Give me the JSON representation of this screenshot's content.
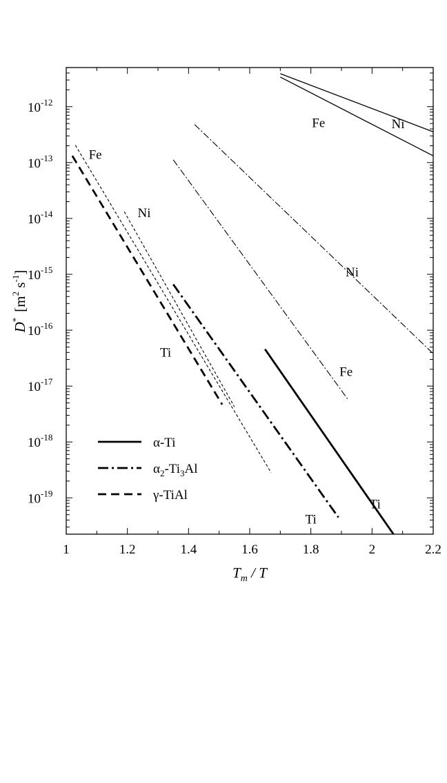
{
  "chart_data": {
    "type": "line",
    "xlabel_main": "T",
    "xlabel_sub": "m",
    "xlabel_rest": " / T",
    "ylabel_main": "D",
    "ylabel_sup": "*",
    "ylabel_unit_open": "[m",
    "ylabel_unit_sup1": "2",
    "ylabel_unit_mid": " s",
    "ylabel_unit_sup2": "-1",
    "ylabel_unit_close": "]",
    "xlim": [
      1.0,
      2.2
    ],
    "ylim_log10": [
      -19.65,
      -11.3
    ],
    "y_scale": "log",
    "grid": false,
    "x_ticks": [
      {
        "v": 1.0,
        "label": "1"
      },
      {
        "v": 1.2,
        "label": "1.2"
      },
      {
        "v": 1.4,
        "label": "1.4"
      },
      {
        "v": 1.6,
        "label": "1.6"
      },
      {
        "v": 1.8,
        "label": "1.8"
      },
      {
        "v": 2.0,
        "label": "2"
      },
      {
        "v": 2.2,
        "label": "2.2"
      }
    ],
    "y_ticks": [
      {
        "exp": -12,
        "base": "10",
        "sup": "-12"
      },
      {
        "exp": -13,
        "base": "10",
        "sup": "-13"
      },
      {
        "exp": -14,
        "base": "10",
        "sup": "-14"
      },
      {
        "exp": -15,
        "base": "10",
        "sup": "-15"
      },
      {
        "exp": -16,
        "base": "10",
        "sup": "-16"
      },
      {
        "exp": -17,
        "base": "10",
        "sup": "-17"
      },
      {
        "exp": -18,
        "base": "10",
        "sup": "-18"
      },
      {
        "exp": -19,
        "base": "10",
        "sup": "-19"
      }
    ],
    "legend": {
      "placement": "bottom-left",
      "items": [
        {
          "style": "alpha",
          "pre": "α-Ti",
          "sub": "",
          "mid": "",
          "sub2": "",
          "post": ""
        },
        {
          "style": "alpha2",
          "pre": "α",
          "sub": "2",
          "mid": "-Ti",
          "sub2": "3",
          "post": "Al"
        },
        {
          "style": "gamma",
          "pre": "γ-TiAl",
          "sub": "",
          "mid": "",
          "sub2": "",
          "post": ""
        }
      ]
    },
    "series": [
      {
        "phase": "α-Ti",
        "style": "alpha",
        "thin": true,
        "label": "Fe",
        "x": [
          1.7,
          2.2
        ],
        "y_log10": [
          -11.47,
          -12.88
        ]
      },
      {
        "phase": "α-Ti",
        "style": "alpha",
        "thin": true,
        "label": "Ni",
        "x": [
          1.7,
          2.2
        ],
        "y_log10": [
          -11.41,
          -12.45
        ]
      },
      {
        "phase": "α-Ti",
        "style": "alpha",
        "thin": false,
        "label": "Ti",
        "x": [
          1.65,
          2.07
        ],
        "y_log10": [
          -16.34,
          -19.65
        ]
      },
      {
        "phase": "α2-Ti3Al",
        "style": "alpha2",
        "thin": true,
        "label": "Fe",
        "x": [
          1.35,
          1.92
        ],
        "y_log10": [
          -12.95,
          -17.23
        ]
      },
      {
        "phase": "α2-Ti3Al",
        "style": "alpha2",
        "thin": true,
        "label": "Ni",
        "x": [
          1.42,
          2.2
        ],
        "y_log10": [
          -12.32,
          -16.42
        ]
      },
      {
        "phase": "α2-Ti3Al",
        "style": "alpha2",
        "thin": false,
        "label": "Ti",
        "x": [
          1.35,
          1.89
        ],
        "y_log10": [
          -15.18,
          -19.35
        ]
      },
      {
        "phase": "γ-TiAl",
        "style": "gamma",
        "thin": true,
        "label": "Fe",
        "x": [
          1.03,
          1.67
        ],
        "y_log10": [
          -12.69,
          -18.55
        ]
      },
      {
        "phase": "γ-TiAl",
        "style": "gamma",
        "thin": true,
        "label": "Ni",
        "x": [
          1.19,
          1.55
        ],
        "y_log10": [
          -13.88,
          -17.37
        ]
      },
      {
        "phase": "γ-TiAl",
        "style": "gamma",
        "thin": false,
        "label": "Ti",
        "x": [
          1.02,
          1.51
        ],
        "y_log10": [
          -12.88,
          -17.33
        ]
      }
    ],
    "annotations": [
      {
        "text": "Fe",
        "x": 1.095,
        "y_log10": -12.85
      },
      {
        "text": "Ni",
        "x": 1.255,
        "y_log10": -13.89
      },
      {
        "text": "Ti",
        "x": 1.325,
        "y_log10": -16.39
      },
      {
        "text": "Fe",
        "x": 1.825,
        "y_log10": -12.28
      },
      {
        "text": "Ni",
        "x": 2.085,
        "y_log10": -12.3
      },
      {
        "text": "Ni",
        "x": 1.935,
        "y_log10": -14.95
      },
      {
        "text": "Fe",
        "x": 1.915,
        "y_log10": -16.73
      },
      {
        "text": "Ti",
        "x": 2.01,
        "y_log10": -19.1
      },
      {
        "text": "Ti",
        "x": 1.8,
        "y_log10": -19.37
      }
    ]
  }
}
